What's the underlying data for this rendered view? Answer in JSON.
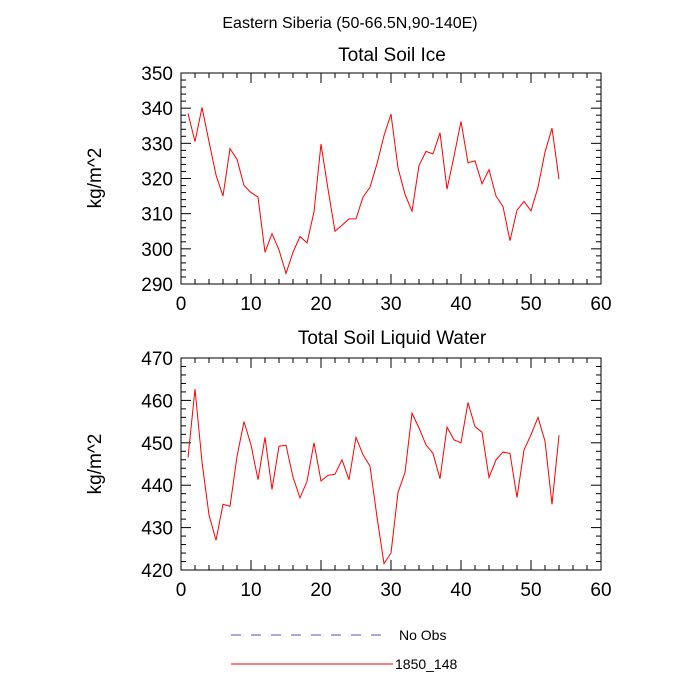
{
  "figure": {
    "main_title": "Eastern Siberia (50-66.5N,90-140E)"
  },
  "chart_data": [
    {
      "type": "line",
      "title": "Total Soil Ice",
      "xlabel": "",
      "ylabel": "kg/m^2",
      "xlim": [
        0,
        60
      ],
      "ylim": [
        290,
        350
      ],
      "xticks": [
        0,
        10,
        20,
        30,
        40,
        50,
        60
      ],
      "yticks": [
        290,
        300,
        310,
        320,
        330,
        340,
        350
      ],
      "grid": false,
      "series": [
        {
          "name": "1850_148",
          "color": "#ff0000",
          "x": [
            1,
            2,
            3,
            4,
            5,
            6,
            7,
            8,
            9,
            10,
            11,
            12,
            13,
            14,
            15,
            16,
            17,
            18,
            19,
            20,
            21,
            22,
            23,
            24,
            25,
            26,
            27,
            28,
            29,
            30,
            31,
            32,
            33,
            34,
            35,
            36,
            37,
            38,
            39,
            40,
            41,
            42,
            43,
            44,
            45,
            46,
            47,
            48,
            49,
            50,
            51,
            52,
            53,
            54
          ],
          "values": [
            338.5,
            330.5,
            340.2,
            330.5,
            321.0,
            315.0,
            328.5,
            325.5,
            318.0,
            316.0,
            314.7,
            299.0,
            304.3,
            299.7,
            293.0,
            299.0,
            303.5,
            301.7,
            310.5,
            329.8,
            317.0,
            305.0,
            306.7,
            308.5,
            308.5,
            314.7,
            317.5,
            324.2,
            332.2,
            338.3,
            323.0,
            315.5,
            310.7,
            323.7,
            327.7,
            327.0,
            333.0,
            317.0,
            326.3,
            336.2,
            324.5,
            325.0,
            318.5,
            322.5,
            315.0,
            312.0,
            302.3,
            311.0,
            313.5,
            310.8,
            317.5,
            327.5,
            334.3,
            319.8
          ]
        }
      ]
    },
    {
      "type": "line",
      "title": "Total Soil Liquid Water",
      "xlabel": "",
      "ylabel": "kg/m^2",
      "xlim": [
        0,
        60
      ],
      "ylim": [
        420,
        470
      ],
      "xticks": [
        0,
        10,
        20,
        30,
        40,
        50,
        60
      ],
      "yticks": [
        420,
        430,
        440,
        450,
        460,
        470
      ],
      "grid": false,
      "series": [
        {
          "name": "1850_148",
          "color": "#ff0000",
          "x": [
            1,
            2,
            3,
            4,
            5,
            6,
            7,
            8,
            9,
            10,
            11,
            12,
            13,
            14,
            15,
            16,
            17,
            18,
            19,
            20,
            21,
            22,
            23,
            24,
            25,
            26,
            27,
            28,
            29,
            30,
            31,
            32,
            33,
            34,
            35,
            36,
            37,
            38,
            39,
            40,
            41,
            42,
            43,
            44,
            45,
            46,
            47,
            48,
            49,
            50,
            51,
            52,
            53,
            54
          ],
          "values": [
            446.5,
            462.7,
            445.5,
            433.0,
            427.0,
            435.5,
            435.0,
            446.8,
            455.0,
            449.5,
            441.3,
            451.3,
            439.0,
            449.2,
            449.4,
            441.9,
            437.0,
            440.9,
            450.0,
            441.0,
            442.3,
            442.6,
            446.0,
            441.3,
            451.3,
            447.2,
            444.5,
            432.5,
            421.5,
            424.0,
            438.3,
            443.0,
            457.0,
            453.5,
            449.5,
            447.5,
            441.5,
            453.7,
            450.7,
            450.0,
            459.5,
            453.8,
            452.5,
            441.8,
            446.0,
            447.8,
            447.5,
            437.1,
            448.3,
            451.9,
            456.0,
            450.4,
            435.5,
            451.8
          ]
        }
      ]
    }
  ],
  "legend": {
    "placement": "bottom-center",
    "items": [
      {
        "label": "No Obs",
        "color": "#5555bb",
        "style": "dashed"
      },
      {
        "label": "1850_148",
        "color": "#ff0000",
        "style": "solid"
      }
    ]
  }
}
